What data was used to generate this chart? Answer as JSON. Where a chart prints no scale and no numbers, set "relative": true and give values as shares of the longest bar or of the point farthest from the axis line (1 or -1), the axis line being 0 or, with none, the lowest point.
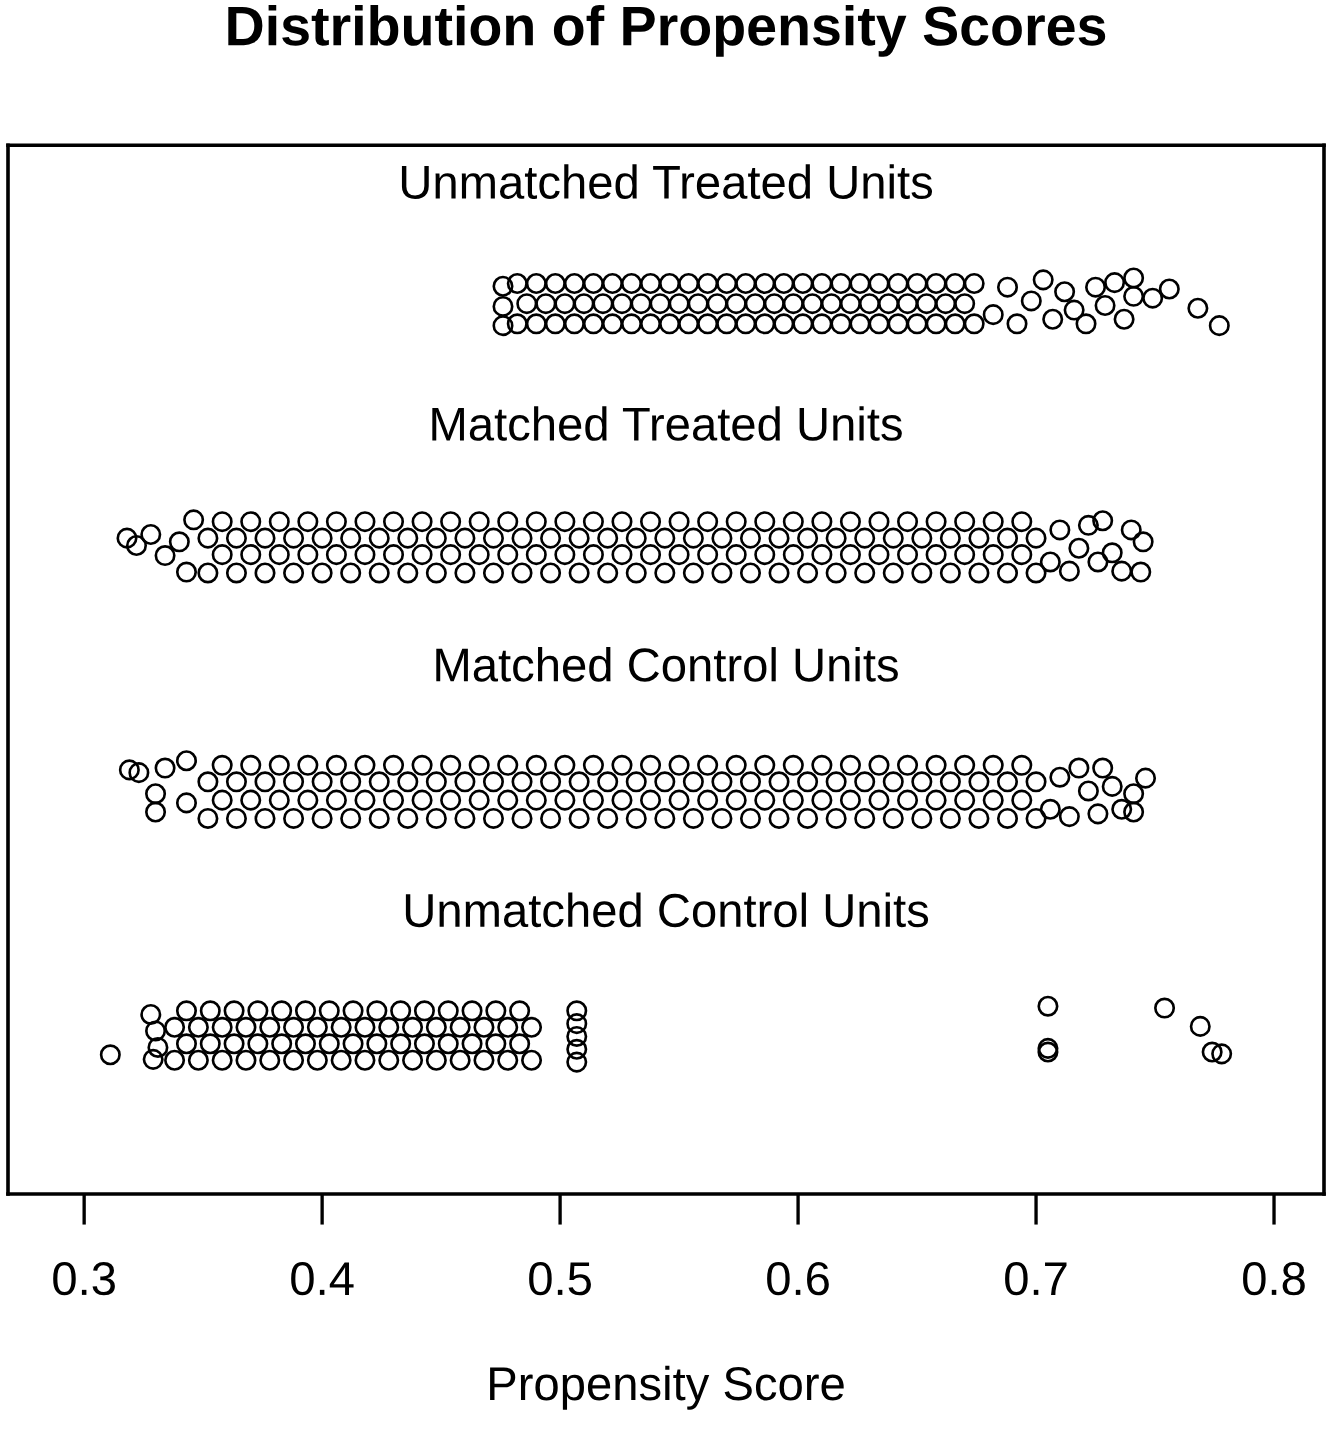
{
  "chart_data": {
    "type": "scatter",
    "title": "Distribution of Propensity Scores",
    "xlabel": "Propensity Score",
    "relative": true,
    "marker": "circle",
    "xlim": [
      0.268,
      0.821
    ],
    "xticks": [
      0.3,
      0.4,
      0.5,
      0.6,
      0.7,
      0.8
    ],
    "series": [
      {
        "name": "Unmatched Treated Units",
        "color": "#000000",
        "x": [
          0.476,
          0.476,
          0.476,
          0.482,
          0.49,
          0.498,
          0.506,
          0.514,
          0.522,
          0.53,
          0.538,
          0.546,
          0.554,
          0.562,
          0.57,
          0.578,
          0.586,
          0.594,
          0.602,
          0.61,
          0.618,
          0.626,
          0.634,
          0.642,
          0.65,
          0.658,
          0.666,
          0.674,
          0.486,
          0.494,
          0.502,
          0.51,
          0.518,
          0.526,
          0.534,
          0.542,
          0.55,
          0.558,
          0.566,
          0.574,
          0.582,
          0.59,
          0.598,
          0.606,
          0.614,
          0.622,
          0.63,
          0.638,
          0.646,
          0.654,
          0.662,
          0.67,
          0.482,
          0.49,
          0.498,
          0.506,
          0.514,
          0.522,
          0.53,
          0.538,
          0.546,
          0.554,
          0.562,
          0.57,
          0.578,
          0.586,
          0.594,
          0.602,
          0.61,
          0.618,
          0.626,
          0.634,
          0.642,
          0.65,
          0.658,
          0.666,
          0.674,
          0.682,
          0.688,
          0.692,
          0.698,
          0.703,
          0.707,
          0.712,
          0.716,
          0.721,
          0.725,
          0.729,
          0.733,
          0.737,
          0.741,
          0.741,
          0.749,
          0.756,
          0.768,
          0.777
        ],
        "values": [
          0.991,
          0.969,
          0.948,
          0.95,
          0.95,
          0.95,
          0.95,
          0.95,
          0.95,
          0.95,
          0.95,
          0.95,
          0.95,
          0.95,
          0.95,
          0.95,
          0.95,
          0.95,
          0.95,
          0.95,
          0.95,
          0.95,
          0.95,
          0.95,
          0.95,
          0.95,
          0.95,
          0.95,
          0.972,
          0.972,
          0.972,
          0.972,
          0.972,
          0.972,
          0.972,
          0.972,
          0.972,
          0.972,
          0.972,
          0.972,
          0.972,
          0.972,
          0.972,
          0.972,
          0.972,
          0.972,
          0.972,
          0.972,
          0.972,
          0.972,
          0.972,
          0.972,
          0.994,
          0.994,
          0.994,
          0.994,
          0.994,
          0.994,
          0.994,
          0.994,
          0.994,
          0.994,
          0.994,
          0.994,
          0.994,
          0.994,
          0.994,
          0.994,
          0.994,
          0.994,
          0.994,
          0.994,
          0.994,
          0.994,
          0.994,
          0.994,
          0.994,
          0.96,
          0.99,
          0.95,
          0.975,
          0.998,
          0.955,
          0.985,
          0.965,
          0.95,
          0.99,
          0.97,
          0.995,
          0.955,
          1.0,
          0.98,
          0.978,
          0.988,
          0.967,
          0.948
        ]
      },
      {
        "name": "Matched Treated Units",
        "color": "#000000",
        "x": [
          0.318,
          0.322,
          0.328,
          0.334,
          0.34,
          0.343,
          0.346,
          0.352,
          0.364,
          0.376,
          0.388,
          0.4,
          0.412,
          0.424,
          0.436,
          0.448,
          0.46,
          0.472,
          0.484,
          0.496,
          0.508,
          0.52,
          0.532,
          0.544,
          0.556,
          0.568,
          0.58,
          0.592,
          0.604,
          0.616,
          0.628,
          0.64,
          0.652,
          0.664,
          0.676,
          0.688,
          0.7,
          0.358,
          0.37,
          0.382,
          0.394,
          0.406,
          0.418,
          0.43,
          0.442,
          0.454,
          0.466,
          0.478,
          0.49,
          0.502,
          0.514,
          0.526,
          0.538,
          0.55,
          0.562,
          0.574,
          0.586,
          0.598,
          0.61,
          0.622,
          0.634,
          0.646,
          0.658,
          0.67,
          0.682,
          0.694,
          0.352,
          0.364,
          0.376,
          0.388,
          0.4,
          0.412,
          0.424,
          0.436,
          0.448,
          0.46,
          0.472,
          0.484,
          0.496,
          0.508,
          0.52,
          0.532,
          0.544,
          0.556,
          0.568,
          0.58,
          0.592,
          0.604,
          0.616,
          0.628,
          0.64,
          0.652,
          0.664,
          0.676,
          0.688,
          0.7,
          0.358,
          0.37,
          0.382,
          0.394,
          0.406,
          0.418,
          0.43,
          0.442,
          0.454,
          0.466,
          0.478,
          0.49,
          0.502,
          0.514,
          0.526,
          0.538,
          0.55,
          0.562,
          0.574,
          0.586,
          0.598,
          0.61,
          0.622,
          0.634,
          0.646,
          0.658,
          0.67,
          0.682,
          0.694,
          0.706,
          0.71,
          0.714,
          0.718,
          0.722,
          0.726,
          0.728,
          0.732,
          0.736,
          0.74,
          0.744,
          0.745
        ],
        "values": [
          0.716,
          0.708,
          0.72,
          0.697,
          0.712,
          0.679,
          0.736,
          0.678,
          0.678,
          0.678,
          0.678,
          0.678,
          0.678,
          0.678,
          0.678,
          0.678,
          0.678,
          0.678,
          0.678,
          0.678,
          0.678,
          0.678,
          0.678,
          0.678,
          0.678,
          0.678,
          0.678,
          0.678,
          0.678,
          0.678,
          0.678,
          0.678,
          0.678,
          0.678,
          0.678,
          0.678,
          0.678,
          0.698,
          0.698,
          0.698,
          0.698,
          0.698,
          0.698,
          0.698,
          0.698,
          0.698,
          0.698,
          0.698,
          0.698,
          0.698,
          0.698,
          0.698,
          0.698,
          0.698,
          0.698,
          0.698,
          0.698,
          0.698,
          0.698,
          0.698,
          0.698,
          0.698,
          0.698,
          0.698,
          0.698,
          0.698,
          0.716,
          0.716,
          0.716,
          0.716,
          0.716,
          0.716,
          0.716,
          0.716,
          0.716,
          0.716,
          0.716,
          0.716,
          0.716,
          0.716,
          0.716,
          0.716,
          0.716,
          0.716,
          0.716,
          0.716,
          0.716,
          0.716,
          0.716,
          0.716,
          0.716,
          0.716,
          0.716,
          0.716,
          0.716,
          0.716,
          0.734,
          0.734,
          0.734,
          0.734,
          0.734,
          0.734,
          0.734,
          0.734,
          0.734,
          0.734,
          0.734,
          0.734,
          0.734,
          0.734,
          0.734,
          0.734,
          0.734,
          0.734,
          0.734,
          0.734,
          0.734,
          0.734,
          0.734,
          0.734,
          0.734,
          0.734,
          0.734,
          0.734,
          0.734,
          0.69,
          0.725,
          0.68,
          0.705,
          0.73,
          0.69,
          0.735,
          0.7,
          0.68,
          0.725,
          0.679,
          0.712
        ]
      },
      {
        "name": "Matched Control Units",
        "color": "#000000",
        "x": [
          0.319,
          0.323,
          0.334,
          0.343,
          0.33,
          0.33,
          0.343,
          0.352,
          0.364,
          0.376,
          0.388,
          0.4,
          0.412,
          0.424,
          0.436,
          0.448,
          0.46,
          0.472,
          0.484,
          0.496,
          0.508,
          0.52,
          0.532,
          0.544,
          0.556,
          0.568,
          0.58,
          0.592,
          0.604,
          0.616,
          0.628,
          0.64,
          0.652,
          0.664,
          0.676,
          0.688,
          0.7,
          0.358,
          0.37,
          0.382,
          0.394,
          0.406,
          0.418,
          0.43,
          0.442,
          0.454,
          0.466,
          0.478,
          0.49,
          0.502,
          0.514,
          0.526,
          0.538,
          0.55,
          0.562,
          0.574,
          0.586,
          0.598,
          0.61,
          0.622,
          0.634,
          0.646,
          0.658,
          0.67,
          0.682,
          0.694,
          0.352,
          0.364,
          0.376,
          0.388,
          0.4,
          0.412,
          0.424,
          0.436,
          0.448,
          0.46,
          0.472,
          0.484,
          0.496,
          0.508,
          0.52,
          0.532,
          0.544,
          0.556,
          0.568,
          0.58,
          0.592,
          0.604,
          0.616,
          0.628,
          0.64,
          0.652,
          0.664,
          0.676,
          0.688,
          0.7,
          0.358,
          0.37,
          0.382,
          0.394,
          0.406,
          0.418,
          0.43,
          0.442,
          0.454,
          0.466,
          0.478,
          0.49,
          0.502,
          0.514,
          0.526,
          0.538,
          0.55,
          0.562,
          0.574,
          0.586,
          0.598,
          0.61,
          0.622,
          0.634,
          0.646,
          0.658,
          0.67,
          0.682,
          0.694,
          0.706,
          0.71,
          0.714,
          0.718,
          0.722,
          0.726,
          0.728,
          0.732,
          0.736,
          0.741,
          0.741,
          0.746
        ],
        "values": [
          0.463,
          0.46,
          0.465,
          0.473,
          0.437,
          0.417,
          0.427,
          0.41,
          0.41,
          0.41,
          0.41,
          0.41,
          0.41,
          0.41,
          0.41,
          0.41,
          0.41,
          0.41,
          0.41,
          0.41,
          0.41,
          0.41,
          0.41,
          0.41,
          0.41,
          0.41,
          0.41,
          0.41,
          0.41,
          0.41,
          0.41,
          0.41,
          0.41,
          0.41,
          0.41,
          0.41,
          0.41,
          0.43,
          0.43,
          0.43,
          0.43,
          0.43,
          0.43,
          0.43,
          0.43,
          0.43,
          0.43,
          0.43,
          0.43,
          0.43,
          0.43,
          0.43,
          0.43,
          0.43,
          0.43,
          0.43,
          0.43,
          0.43,
          0.43,
          0.43,
          0.43,
          0.43,
          0.43,
          0.43,
          0.43,
          0.43,
          0.45,
          0.45,
          0.45,
          0.45,
          0.45,
          0.45,
          0.45,
          0.45,
          0.45,
          0.45,
          0.45,
          0.45,
          0.45,
          0.45,
          0.45,
          0.45,
          0.45,
          0.45,
          0.45,
          0.45,
          0.45,
          0.45,
          0.45,
          0.45,
          0.45,
          0.45,
          0.45,
          0.45,
          0.45,
          0.45,
          0.468,
          0.468,
          0.468,
          0.468,
          0.468,
          0.468,
          0.468,
          0.468,
          0.468,
          0.468,
          0.468,
          0.468,
          0.468,
          0.468,
          0.468,
          0.468,
          0.468,
          0.468,
          0.468,
          0.468,
          0.468,
          0.468,
          0.468,
          0.468,
          0.468,
          0.468,
          0.468,
          0.468,
          0.468,
          0.42,
          0.455,
          0.412,
          0.465,
          0.44,
          0.415,
          0.465,
          0.445,
          0.42,
          0.437,
          0.417,
          0.454
        ]
      },
      {
        "name": "Unmatched Control Units",
        "color": "#000000",
        "x": [
          0.311,
          0.328,
          0.33,
          0.331,
          0.329,
          0.338,
          0.348,
          0.358,
          0.368,
          0.378,
          0.388,
          0.398,
          0.408,
          0.418,
          0.428,
          0.438,
          0.448,
          0.458,
          0.468,
          0.478,
          0.488,
          0.343,
          0.353,
          0.363,
          0.373,
          0.383,
          0.393,
          0.403,
          0.413,
          0.423,
          0.433,
          0.443,
          0.453,
          0.463,
          0.473,
          0.483,
          0.338,
          0.348,
          0.358,
          0.368,
          0.378,
          0.388,
          0.398,
          0.408,
          0.418,
          0.428,
          0.438,
          0.448,
          0.458,
          0.468,
          0.478,
          0.488,
          0.343,
          0.353,
          0.363,
          0.373,
          0.383,
          0.393,
          0.403,
          0.413,
          0.423,
          0.433,
          0.443,
          0.453,
          0.463,
          0.473,
          0.483,
          0.507,
          0.507,
          0.507,
          0.507,
          0.507,
          0.705,
          0.705,
          0.705,
          0.754,
          0.769,
          0.774,
          0.778
        ],
        "values": [
          0.152,
          0.196,
          0.178,
          0.16,
          0.147,
          0.146,
          0.146,
          0.146,
          0.146,
          0.146,
          0.146,
          0.146,
          0.146,
          0.146,
          0.146,
          0.146,
          0.146,
          0.146,
          0.146,
          0.146,
          0.146,
          0.164,
          0.164,
          0.164,
          0.164,
          0.164,
          0.164,
          0.164,
          0.164,
          0.164,
          0.164,
          0.164,
          0.164,
          0.164,
          0.164,
          0.164,
          0.182,
          0.182,
          0.182,
          0.182,
          0.182,
          0.182,
          0.182,
          0.182,
          0.182,
          0.182,
          0.182,
          0.182,
          0.182,
          0.182,
          0.182,
          0.182,
          0.2,
          0.2,
          0.2,
          0.2,
          0.2,
          0.2,
          0.2,
          0.2,
          0.2,
          0.2,
          0.2,
          0.2,
          0.2,
          0.2,
          0.2,
          0.2,
          0.186,
          0.172,
          0.158,
          0.144,
          0.205,
          0.159,
          0.155,
          0.203,
          0.183,
          0.155,
          0.153
        ]
      }
    ]
  }
}
